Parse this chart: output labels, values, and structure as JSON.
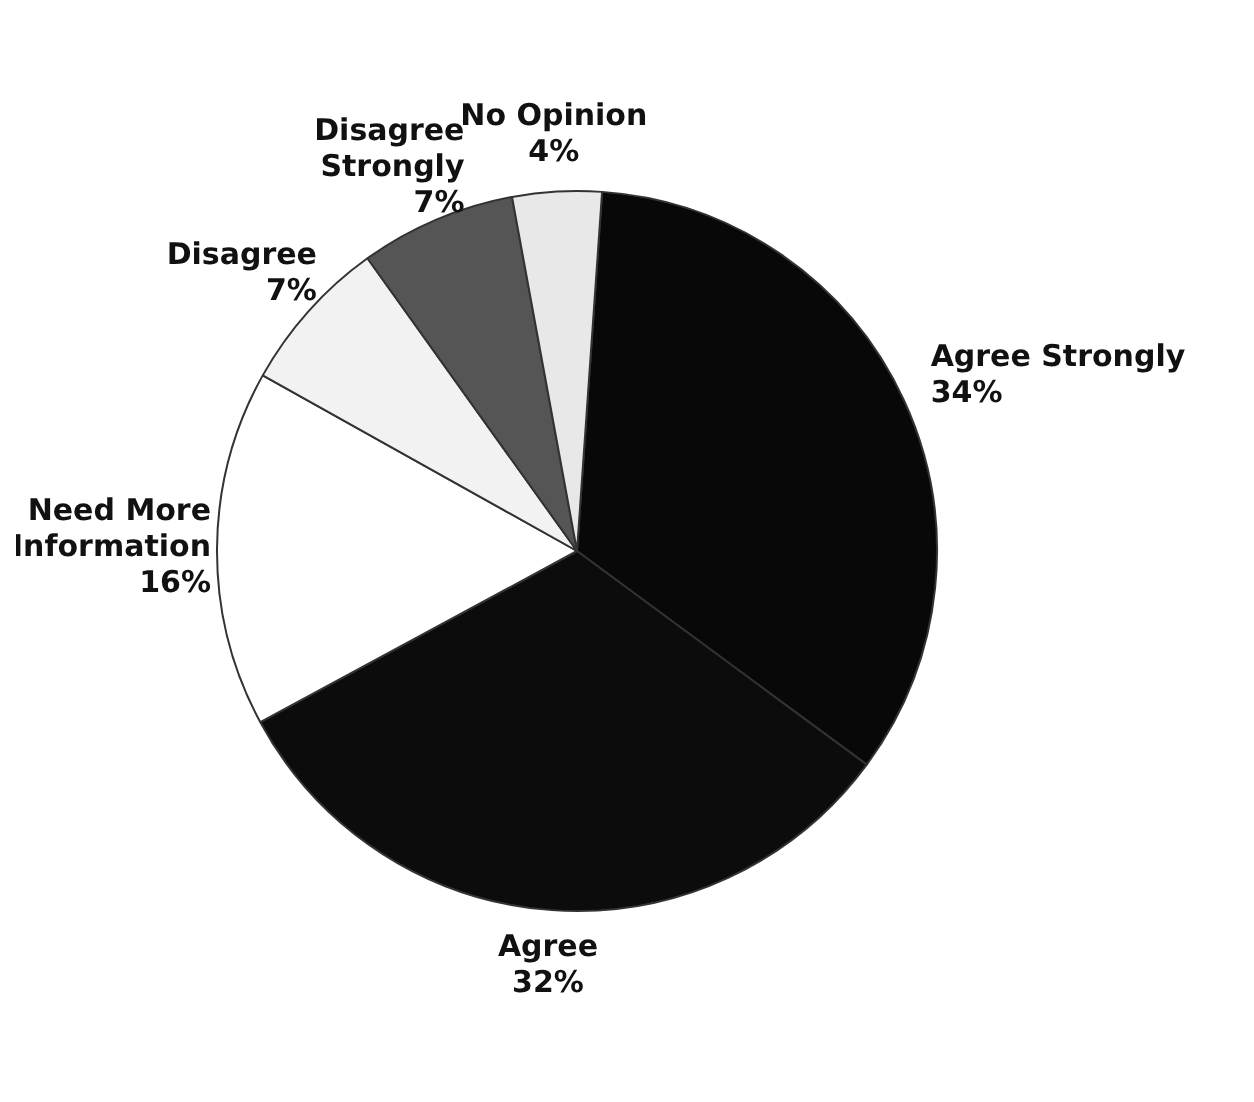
{
  "chart_data": {
    "type": "pie",
    "categories": [
      "Agree Strongly",
      "Agree",
      "Need More Information",
      "Disagree",
      "Disagree Strongly",
      "No Opinion"
    ],
    "values": [
      34,
      32,
      16,
      7,
      7,
      4
    ],
    "value_labels": [
      "34%",
      "32%",
      "16%",
      "7%",
      "7%",
      "4%"
    ],
    "colors": [
      "#080808",
      "#0c0c0c",
      "#ffffff",
      "#f2f2f2",
      "#555555",
      "#e8e8e8"
    ],
    "legend": false
  }
}
